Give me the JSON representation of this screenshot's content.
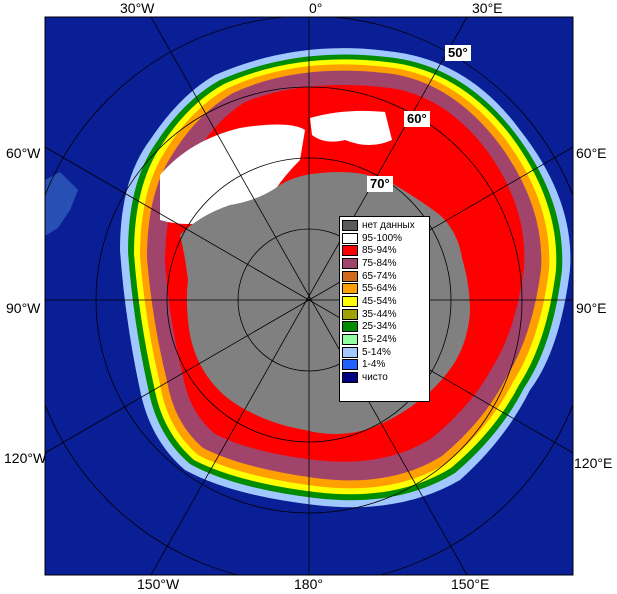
{
  "longitude_labels": {
    "top": [
      "30°W",
      "0°",
      "30°E"
    ],
    "left": [
      "60°W",
      "90°W",
      "120°W"
    ],
    "right": [
      "60°E",
      "90°E",
      "120°E"
    ],
    "bottom": [
      "150°W",
      "180°",
      "150°E"
    ]
  },
  "latitude_labels": [
    "50°",
    "60°",
    "70°"
  ],
  "legend": [
    {
      "label": "нет данных",
      "color": "#5a5a5a"
    },
    {
      "label": "95-100%",
      "color": "#ffffff"
    },
    {
      "label": "85-94%",
      "color": "#ff0000"
    },
    {
      "label": "75-84%",
      "color": "#a0446c"
    },
    {
      "label": "65-74%",
      "color": "#d2691e"
    },
    {
      "label": "55-64%",
      "color": "#ffa000"
    },
    {
      "label": "45-54%",
      "color": "#ffff00"
    },
    {
      "label": "35-44%",
      "color": "#a0a000"
    },
    {
      "label": "25-34%",
      "color": "#008c00"
    },
    {
      "label": "15-24%",
      "color": "#90ffa0"
    },
    {
      "label": "5-14%",
      "color": "#a0c8ff"
    },
    {
      "label": "1-4%",
      "color": "#2060ff"
    },
    {
      "label": "чисто",
      "color": "#000080"
    }
  ],
  "colors": {
    "open_water": "#0a1e96",
    "land": "#808080",
    "grid": "#000000"
  }
}
